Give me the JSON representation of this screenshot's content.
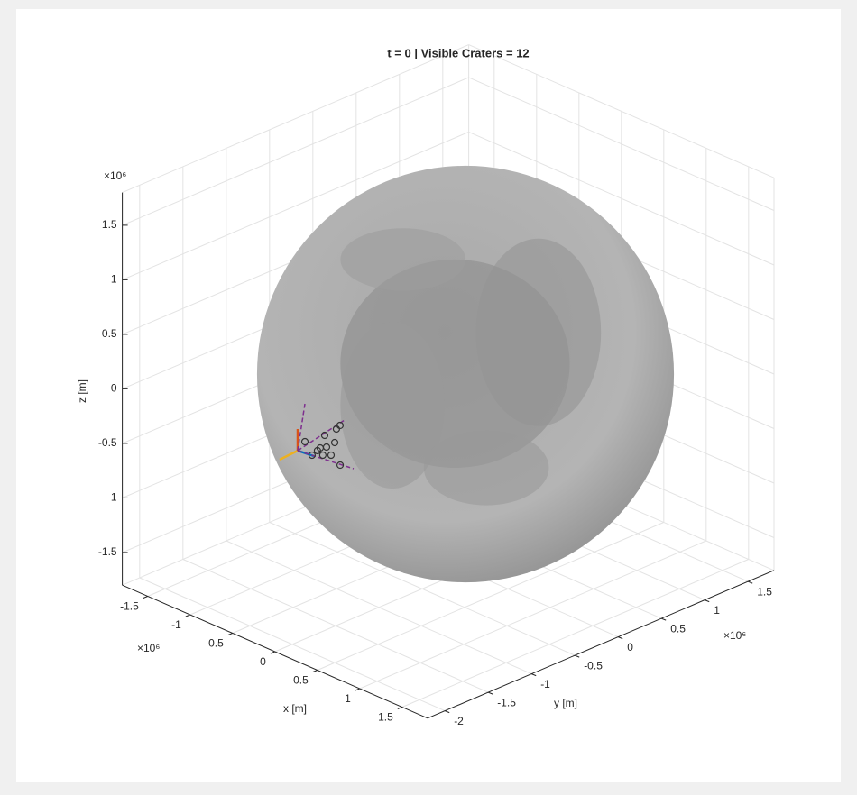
{
  "chart_data": {
    "type": "scatter3",
    "title": "t = 0 | Visible Craters = 12",
    "xlabel": "x [m]",
    "ylabel": "y [m]",
    "zlabel": "z [m]",
    "x_exponent": "×10⁶",
    "y_exponent": "×10⁶",
    "z_exponent": "×10⁶",
    "xlim": [
      -1.8,
      1.8
    ],
    "ylim": [
      -2.2,
      1.8
    ],
    "zlim": [
      -1.8,
      1.8
    ],
    "xticks": [
      -1.5,
      -1,
      -0.5,
      0,
      0.5,
      1,
      1.5
    ],
    "yticks": [
      -2,
      -1.5,
      -1,
      -0.5,
      0,
      0.5,
      1,
      1.5
    ],
    "zticks": [
      -1.5,
      -1,
      -0.5,
      0,
      0.5,
      1,
      1.5
    ],
    "grid": true,
    "sphere_radius": 1.7374,
    "series": [
      {
        "name": "craters",
        "color": "#333333",
        "x": [
          -0.907,
          -0.732,
          -0.878,
          -0.896,
          -0.924,
          -0.721,
          -0.711,
          -0.618,
          -0.57,
          -0.381,
          -0.681,
          -0.707
        ],
        "y": [
          -0.966,
          -0.961,
          -0.766,
          -0.613,
          -0.544,
          -0.804,
          -1.013,
          -1.042,
          -0.994,
          -1.074,
          -1.105,
          -0.912
        ],
        "z": [
          -0.6,
          -0.6,
          -0.6,
          -0.6,
          -0.6,
          -0.6,
          -0.6,
          -0.6,
          -0.6,
          -0.6,
          -0.6,
          -0.6
        ]
      }
    ]
  }
}
